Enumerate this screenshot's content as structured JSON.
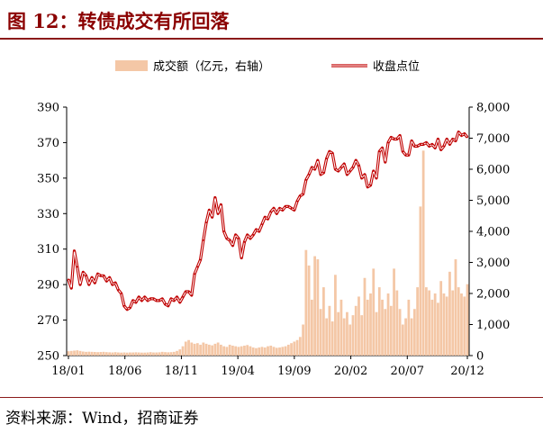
{
  "figure": {
    "title": "图 12：转债成交有所回落",
    "source": "资料来源：Wind，招商证券"
  },
  "colors": {
    "title": "#8b0000",
    "rule": "#8b1a1a",
    "bar": "#f4c7a6",
    "line_outer": "#c00000",
    "line_inner": "#ffffff",
    "axis": "#000000"
  },
  "chart_data": {
    "type": "bar+line",
    "legend_position": "top",
    "grid": false,
    "x_tick_labels": [
      "18/01",
      "18/06",
      "18/11",
      "19/04",
      "19/09",
      "20/02",
      "20/07",
      "20/12"
    ],
    "y_left": {
      "label": "",
      "range": [
        250,
        390
      ],
      "ticks": [
        250,
        270,
        290,
        310,
        330,
        350,
        370,
        390
      ]
    },
    "y_right": {
      "label": "",
      "range": [
        0,
        8000
      ],
      "ticks": [
        "0",
        "1,000",
        "2,000",
        "3,000",
        "4,000",
        "5,000",
        "6,000",
        "7,000",
        "8,000"
      ]
    },
    "series": [
      {
        "name": "成交额（亿元，右轴）",
        "type": "bar",
        "axis": "right",
        "x": [
          0,
          1,
          2,
          3,
          4,
          5,
          6,
          7,
          8,
          9,
          10,
          11,
          12,
          13,
          14,
          15,
          16,
          17,
          18,
          19,
          20,
          21,
          22,
          23,
          24,
          25,
          26,
          27,
          28,
          29,
          30,
          31,
          32,
          33,
          34,
          35,
          36,
          37,
          38,
          39,
          40,
          41,
          42,
          43,
          44,
          45,
          46,
          47,
          48,
          49,
          50,
          51,
          52,
          53,
          54,
          55,
          56,
          57,
          58,
          59,
          60,
          61,
          62,
          63,
          64,
          65,
          66,
          67,
          68,
          69,
          70,
          71,
          72,
          73,
          74,
          75,
          76,
          77,
          78,
          79,
          80,
          81,
          82,
          83,
          84,
          85,
          86,
          87,
          88,
          89,
          90,
          91,
          92,
          93,
          94,
          95,
          96,
          97,
          98,
          99,
          100,
          101,
          102,
          103,
          104,
          105,
          106,
          107,
          108,
          109,
          110,
          111,
          112,
          113,
          114,
          115,
          116,
          117,
          118,
          119,
          120,
          121,
          122,
          123,
          124,
          125,
          126,
          127,
          128,
          129,
          130,
          131,
          132,
          133,
          134,
          135,
          136
        ],
        "values": [
          140,
          150,
          160,
          170,
          150,
          130,
          120,
          125,
          120,
          115,
          110,
          115,
          120,
          110,
          105,
          100,
          110,
          100,
          95,
          100,
          95,
          100,
          100,
          105,
          100,
          95,
          95,
          100,
          110,
          100,
          100,
          105,
          120,
          110,
          105,
          110,
          120,
          150,
          200,
          300,
          450,
          500,
          420,
          380,
          400,
          350,
          420,
          380,
          350,
          330,
          380,
          420,
          350,
          300,
          280,
          350,
          320,
          300,
          280,
          300,
          320,
          340,
          300,
          260,
          240,
          260,
          280,
          260,
          300,
          320,
          280,
          250,
          260,
          280,
          300,
          350,
          400,
          450,
          500,
          600,
          1000,
          3400,
          2900,
          1800,
          3200,
          3100,
          1500,
          2200,
          1200,
          1600,
          1100,
          2600,
          1400,
          1800,
          1200,
          1400,
          1000,
          1300,
          1600,
          1900,
          1300,
          2500,
          1800,
          2000,
          2800,
          1400,
          2200,
          1800,
          1500,
          2000,
          1600,
          2800,
          2100,
          1500,
          1000,
          1200,
          1800,
          1200,
          1500,
          2200,
          4800,
          6600,
          2200,
          2100,
          1800,
          2000,
          1700,
          2400,
          2000,
          1900,
          2700,
          2100,
          3100,
          2200,
          2000,
          1900,
          2300
        ]
      },
      {
        "name": "收盘点位",
        "type": "line",
        "axis": "left",
        "x": [
          0,
          1,
          2,
          3,
          4,
          5,
          6,
          7,
          8,
          9,
          10,
          11,
          12,
          13,
          14,
          15,
          16,
          17,
          18,
          19,
          20,
          21,
          22,
          23,
          24,
          25,
          26,
          27,
          28,
          29,
          30,
          31,
          32,
          33,
          34,
          35,
          36,
          37,
          38,
          39,
          40,
          41,
          42,
          43,
          44,
          45,
          46,
          47,
          48,
          49,
          50,
          51,
          52,
          53,
          54,
          55,
          56,
          57,
          58,
          59,
          60,
          61,
          62,
          63,
          64,
          65,
          66,
          67,
          68,
          69,
          70,
          71,
          72,
          73,
          74,
          75,
          76,
          77,
          78,
          79,
          80,
          81,
          82,
          83,
          84,
          85,
          86,
          87,
          88,
          89,
          90,
          91,
          92,
          93,
          94,
          95,
          96,
          97,
          98,
          99,
          100,
          101,
          102,
          103,
          104,
          105,
          106,
          107,
          108,
          109,
          110,
          111,
          112,
          113,
          114,
          115,
          116,
          117,
          118,
          119,
          120,
          121,
          122,
          123,
          124,
          125,
          126,
          127,
          128,
          129,
          130,
          131,
          132,
          133,
          134,
          135,
          136
        ],
        "values": [
          293,
          288,
          309,
          300,
          290,
          297,
          295,
          290,
          294,
          291,
          296,
          295,
          295,
          292,
          294,
          290,
          291,
          287,
          285,
          278,
          276,
          277,
          281,
          280,
          283,
          281,
          283,
          281,
          282,
          282,
          281,
          281,
          282,
          279,
          278,
          282,
          281,
          283,
          280,
          283,
          286,
          286,
          284,
          296,
          300,
          304,
          315,
          325,
          332,
          328,
          339,
          330,
          335,
          320,
          316,
          315,
          312,
          318,
          316,
          305,
          314,
          318,
          316,
          318,
          321,
          320,
          324,
          328,
          327,
          331,
          333,
          330,
          333,
          332,
          334,
          334,
          333,
          332,
          337,
          340,
          341,
          349,
          352,
          356,
          355,
          360,
          352,
          353,
          361,
          365,
          364,
          355,
          354,
          356,
          358,
          352,
          354,
          356,
          360,
          357,
          350,
          352,
          345,
          346,
          354,
          350,
          365,
          367,
          359,
          370,
          373,
          372,
          372,
          374,
          365,
          363,
          363,
          371,
          368,
          368,
          369,
          369,
          370,
          368,
          369,
          367,
          372,
          366,
          368,
          372,
          369,
          372,
          371,
          376,
          374,
          375,
          373
        ]
      }
    ]
  }
}
